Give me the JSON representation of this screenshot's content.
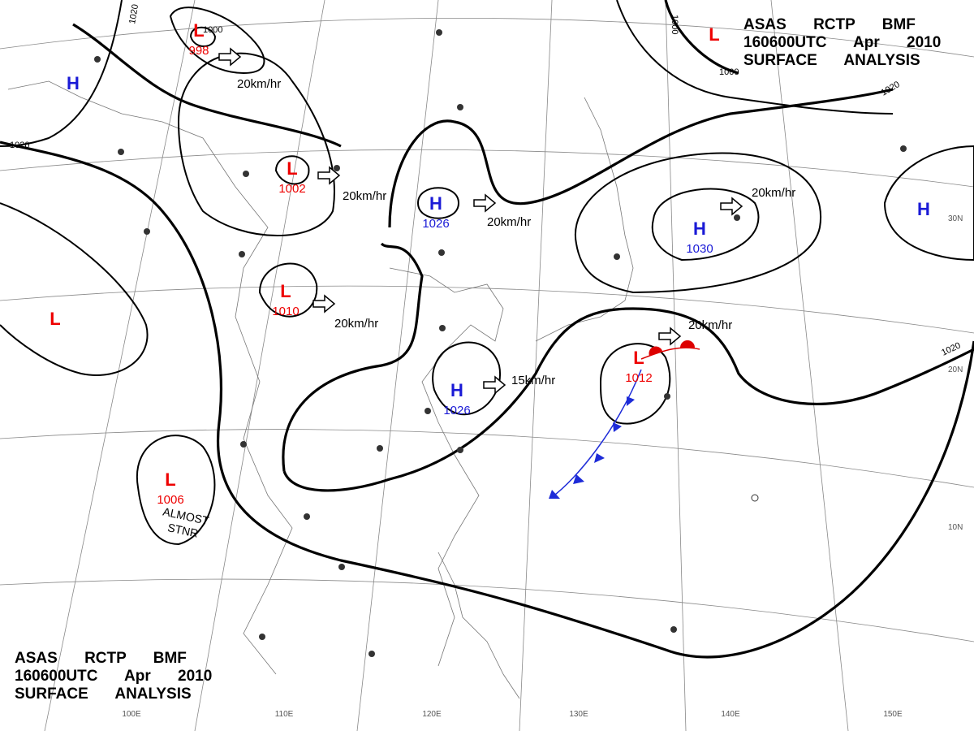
{
  "header": {
    "lines": [
      "ASAS RCTP BMF",
      "160600UTC Apr 2010",
      "SURFACE ANALYSIS"
    ]
  },
  "footer": {
    "lines": [
      "ASAS RCTP BMF",
      "160600UTC Apr 2010",
      "SURFACE ANALYSIS"
    ]
  },
  "centers": [
    {
      "letter": "L",
      "pressure": "998"
    },
    {
      "letter": "H"
    },
    {
      "letter": "L",
      "pressure": "1002"
    },
    {
      "letter": "H",
      "pressure": "1026"
    },
    {
      "letter": "H",
      "pressure": "1030"
    },
    {
      "letter": "H"
    },
    {
      "letter": "L",
      "pressure": "1010"
    },
    {
      "letter": "L"
    },
    {
      "letter": "H",
      "pressure": "1026"
    },
    {
      "letter": "L",
      "pressure": "1012"
    },
    {
      "letter": "L",
      "pressure": "1006"
    },
    {
      "letter": "L"
    }
  ],
  "motions": [
    "20km/hr",
    "20km/hr",
    "20km/hr",
    "20km/hr",
    "20km/hr",
    "20km/hr",
    "15km/hr"
  ],
  "isobar_labels": [
    "1020",
    "1020",
    "1000",
    "1000",
    "1000",
    "1020",
    "1020"
  ],
  "annotation": {
    "lines": [
      "ALMOST",
      "STNR"
    ]
  },
  "lon_labels": [
    "100E",
    "110E",
    "120E",
    "130E",
    "140E",
    "150E"
  ],
  "lat_labels": [
    "30N",
    "20N",
    "10N"
  ]
}
